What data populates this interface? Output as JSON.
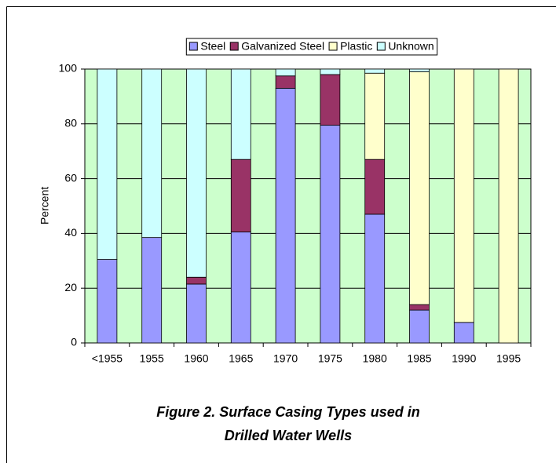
{
  "chart_data": {
    "type": "stacked_bar",
    "title": [
      "Figure 2. Surface Casing Types used in",
      "Drilled Water Wells"
    ],
    "y_label": "Percent",
    "categories": [
      "<1955",
      "1955",
      "1960",
      "1965",
      "1970",
      "1975",
      "1980",
      "1985",
      "1990",
      "1995"
    ],
    "series": [
      {
        "name": "Steel",
        "color": "#9999ff",
        "values": [
          30.5,
          38.5,
          21.5,
          40.5,
          93,
          79.5,
          47,
          12,
          7.5,
          0
        ]
      },
      {
        "name": "Galvanized Steel",
        "color": "#993366",
        "values": [
          0,
          0,
          2.5,
          26.5,
          4.5,
          18.5,
          20,
          2,
          0,
          0
        ]
      },
      {
        "name": "Plastic",
        "color": "#ffffcc",
        "values": [
          0,
          0,
          0,
          0,
          0,
          0,
          31.5,
          85,
          92.5,
          100
        ]
      },
      {
        "name": "Unknown",
        "color": "#ccffff",
        "values": [
          69.5,
          61.5,
          76,
          33,
          2.5,
          2,
          1.5,
          1,
          0,
          0
        ]
      }
    ],
    "ylim": [
      0,
      100
    ],
    "yticks": [
      0,
      20,
      40,
      60,
      80,
      100
    ],
    "grid": true,
    "plot_background": "#ccffcc",
    "legend": "top"
  }
}
